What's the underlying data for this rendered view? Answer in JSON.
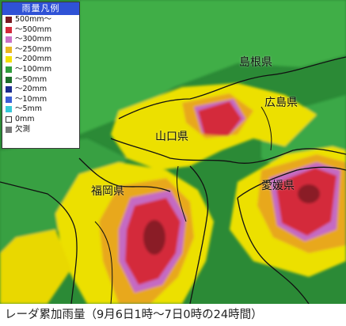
{
  "legend": {
    "title": "雨量凡例",
    "items": [
      {
        "label": "500mm〜",
        "color": "#7a1a22"
      },
      {
        "label": "〜500mm",
        "color": "#d42a3b"
      },
      {
        "label": "〜300mm",
        "color": "#c970c6"
      },
      {
        "label": "〜250mm",
        "color": "#e8b820"
      },
      {
        "label": "〜200mm",
        "color": "#f2e100"
      },
      {
        "label": "〜100mm",
        "color": "#2f9d3c"
      },
      {
        "label": "〜50mm",
        "color": "#1d6e2a"
      },
      {
        "label": "〜20mm",
        "color": "#1c2d8f"
      },
      {
        "label": "〜10mm",
        "color": "#3b5fd6"
      },
      {
        "label": "〜5mm",
        "color": "#36c9d8"
      },
      {
        "label": "0mm",
        "color": "#ffffff",
        "outline": true
      },
      {
        "label": "欠測",
        "color": "#7a7a7a"
      }
    ]
  },
  "map": {
    "labels": {
      "shimane": "島根県",
      "hiroshima": "広島県",
      "yamaguchi": "山口県",
      "fukuoka": "福岡県",
      "ehime": "愛媛県"
    }
  },
  "caption": "レーダ累加雨量（9月6日1時〜7日0時の24時間）"
}
